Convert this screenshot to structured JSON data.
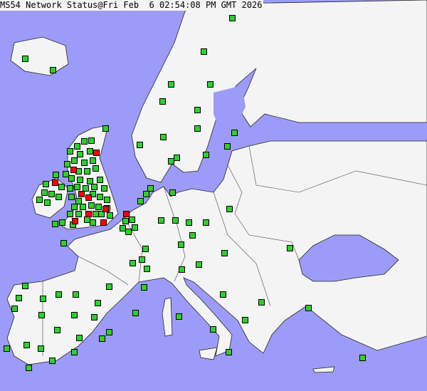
{
  "title": "MS54 Network Status@Fri Feb  6 02:54:08 PM GMT 2026",
  "colors": {
    "sea": "#9c9cf8",
    "land": "#f4f4f4",
    "border": "#333333",
    "ok": "#33cc33",
    "alert": "#ff0000"
  },
  "legend_status": [
    "ok",
    "alert"
  ],
  "station_summary": {
    "ok_icon": "green-square-marker",
    "alert_icon": "red-square-marker"
  }
}
